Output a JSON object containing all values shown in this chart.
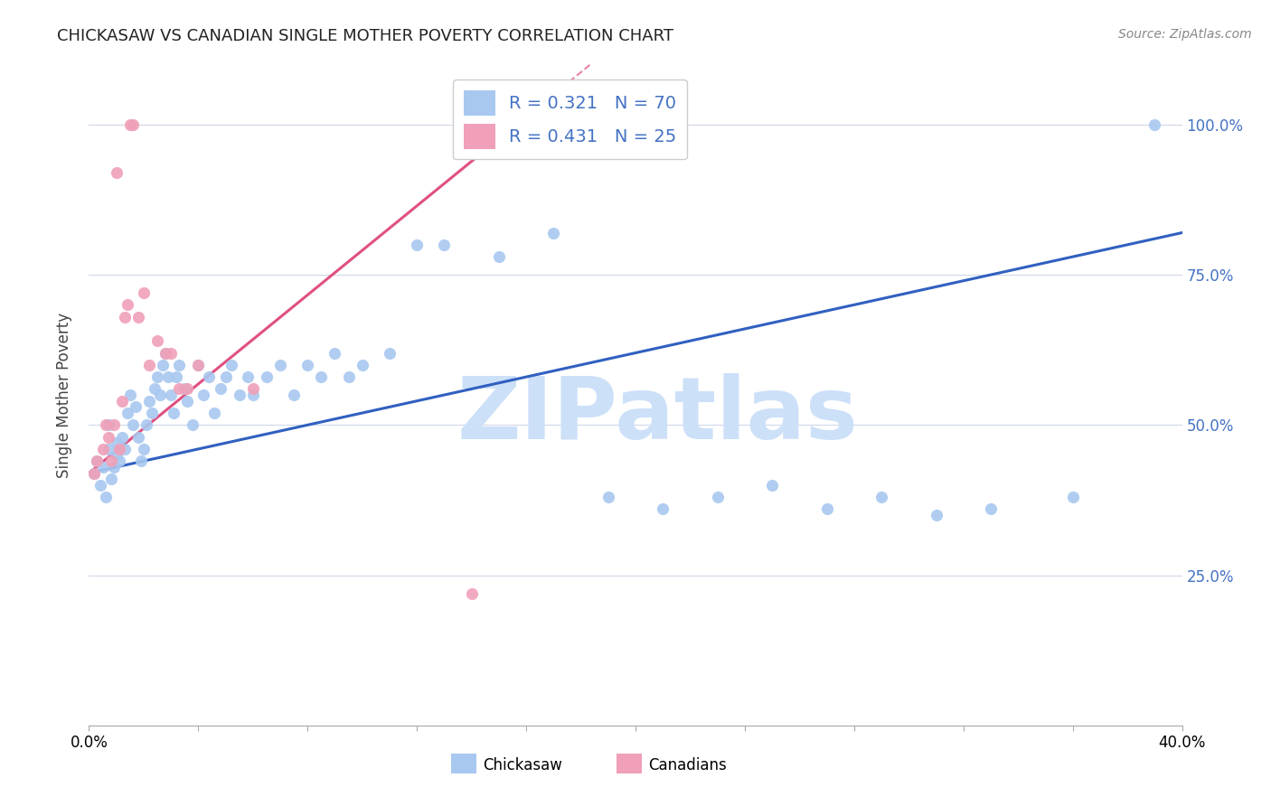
{
  "title": "CHICKASAW VS CANADIAN SINGLE MOTHER POVERTY CORRELATION CHART",
  "source": "Source: ZipAtlas.com",
  "ylabel": "Single Mother Poverty",
  "yticks": [
    0.0,
    0.25,
    0.5,
    0.75,
    1.0
  ],
  "ytick_labels": [
    "",
    "25.0%",
    "50.0%",
    "75.0%",
    "100.0%"
  ],
  "xlim": [
    0.0,
    0.4
  ],
  "ylim": [
    0.1,
    1.1
  ],
  "color_chickasaw": "#a8c8f0",
  "color_canadians": "#f0a0b8",
  "color_line_blue": "#3060c0",
  "color_line_pink": "#e05080",
  "watermark_color": "#cce0f8",
  "chickasaw_x": [
    0.002,
    0.003,
    0.004,
    0.005,
    0.006,
    0.007,
    0.007,
    0.008,
    0.009,
    0.01,
    0.01,
    0.011,
    0.012,
    0.013,
    0.014,
    0.015,
    0.016,
    0.017,
    0.018,
    0.019,
    0.02,
    0.021,
    0.022,
    0.023,
    0.024,
    0.025,
    0.026,
    0.027,
    0.028,
    0.029,
    0.03,
    0.031,
    0.032,
    0.033,
    0.035,
    0.036,
    0.038,
    0.04,
    0.042,
    0.044,
    0.046,
    0.048,
    0.05,
    0.052,
    0.055,
    0.058,
    0.06,
    0.065,
    0.07,
    0.075,
    0.08,
    0.085,
    0.09,
    0.095,
    0.1,
    0.11,
    0.12,
    0.13,
    0.15,
    0.17,
    0.19,
    0.21,
    0.23,
    0.25,
    0.27,
    0.29,
    0.31,
    0.33,
    0.36,
    0.39
  ],
  "chickasaw_y": [
    0.42,
    0.44,
    0.4,
    0.43,
    0.38,
    0.46,
    0.5,
    0.41,
    0.43,
    0.45,
    0.47,
    0.44,
    0.48,
    0.46,
    0.52,
    0.55,
    0.5,
    0.53,
    0.48,
    0.44,
    0.46,
    0.5,
    0.54,
    0.52,
    0.56,
    0.58,
    0.55,
    0.6,
    0.62,
    0.58,
    0.55,
    0.52,
    0.58,
    0.6,
    0.56,
    0.54,
    0.5,
    0.6,
    0.55,
    0.58,
    0.52,
    0.56,
    0.58,
    0.6,
    0.55,
    0.58,
    0.55,
    0.58,
    0.6,
    0.55,
    0.6,
    0.58,
    0.62,
    0.58,
    0.6,
    0.62,
    0.8,
    0.8,
    0.78,
    0.82,
    0.38,
    0.36,
    0.38,
    0.4,
    0.36,
    0.38,
    0.35,
    0.36,
    0.38,
    1.0
  ],
  "canadians_x": [
    0.002,
    0.003,
    0.005,
    0.006,
    0.007,
    0.008,
    0.009,
    0.01,
    0.011,
    0.012,
    0.013,
    0.014,
    0.015,
    0.016,
    0.018,
    0.02,
    0.022,
    0.025,
    0.028,
    0.03,
    0.033,
    0.036,
    0.04,
    0.06,
    0.14
  ],
  "canadians_y": [
    0.42,
    0.44,
    0.46,
    0.5,
    0.48,
    0.44,
    0.5,
    0.92,
    0.46,
    0.54,
    0.68,
    0.7,
    1.0,
    1.0,
    0.68,
    0.72,
    0.6,
    0.64,
    0.62,
    0.62,
    0.56,
    0.56,
    0.6,
    0.56,
    0.22
  ],
  "line_blue_x0": 0.0,
  "line_blue_y0": 0.42,
  "line_blue_x1": 0.4,
  "line_blue_y1": 0.82,
  "line_pink_x0": 0.0,
  "line_pink_y0": 0.42,
  "line_pink_x1": 0.17,
  "line_pink_y1": 1.05
}
